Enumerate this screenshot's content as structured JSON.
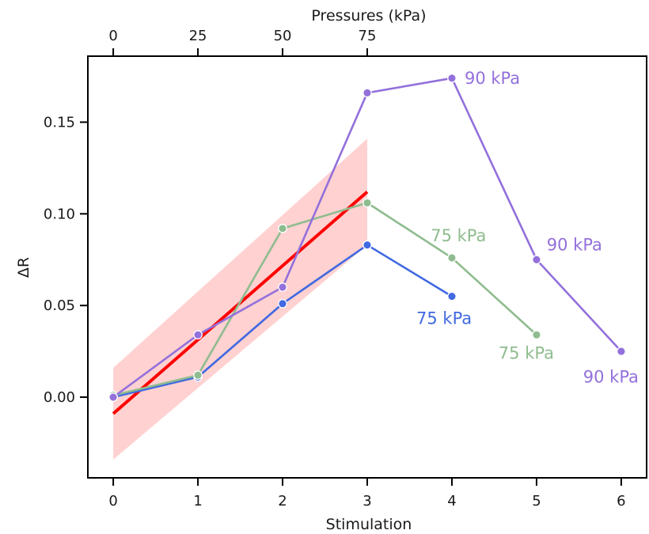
{
  "chart_data": {
    "type": "line",
    "title": "",
    "xlabel": "Stimulation",
    "ylabel": "ΔR",
    "top_xlabel": "Pressures (kPa)",
    "xlim": [
      -0.3,
      6.3
    ],
    "ylim": [
      -0.044,
      0.186
    ],
    "x_ticks": [
      0,
      1,
      2,
      3,
      4,
      5,
      6
    ],
    "x_tick_labels": [
      "0",
      "1",
      "2",
      "3",
      "4",
      "5",
      "6"
    ],
    "y_ticks": [
      0.0,
      0.05,
      0.1,
      0.15
    ],
    "y_tick_labels": [
      "0.00",
      "0.05",
      "0.10",
      "0.15"
    ],
    "top_ticks": [
      0,
      1,
      2,
      3
    ],
    "top_tick_labels": [
      "0",
      "25",
      "50",
      "75"
    ],
    "grid": false,
    "series": [
      {
        "color": "#4169e1",
        "x": [
          0,
          1,
          2,
          3,
          4
        ],
        "y": [
          0.0,
          0.011,
          0.051,
          0.083,
          0.055
        ]
      },
      {
        "color": "#8fbc8f",
        "x": [
          0,
          1,
          2,
          3,
          4,
          5
        ],
        "y": [
          0.001,
          0.012,
          0.092,
          0.106,
          0.076,
          0.034
        ]
      },
      {
        "color": "#9370db",
        "x": [
          0,
          1,
          2,
          3,
          4,
          5,
          6
        ],
        "y": [
          0.0,
          0.034,
          0.06,
          0.166,
          0.174,
          0.075,
          0.025
        ]
      }
    ],
    "fit": {
      "color": "#ff0000",
      "band_color": "#ffb3b3",
      "x": [
        0,
        3
      ],
      "y": [
        -0.009,
        0.112
      ],
      "band_lower": [
        -0.034,
        0.083
      ],
      "band_upper": [
        0.016,
        0.141
      ]
    },
    "annotations": [
      {
        "text": "90 kPa",
        "x": 4.15,
        "y": 0.174,
        "color": "#9370db"
      },
      {
        "text": "75 kPa",
        "x": 3.75,
        "y": 0.088,
        "color": "#8fbc8f"
      },
      {
        "text": "90 kPa",
        "x": 5.12,
        "y": 0.083,
        "color": "#9370db"
      },
      {
        "text": "75 kPa",
        "x": 3.58,
        "y": 0.043,
        "color": "#4169e1"
      },
      {
        "text": "75 kPa",
        "x": 4.55,
        "y": 0.024,
        "color": "#8fbc8f"
      },
      {
        "text": "90 kPa",
        "x": 5.55,
        "y": 0.011,
        "color": "#9370db"
      }
    ]
  }
}
